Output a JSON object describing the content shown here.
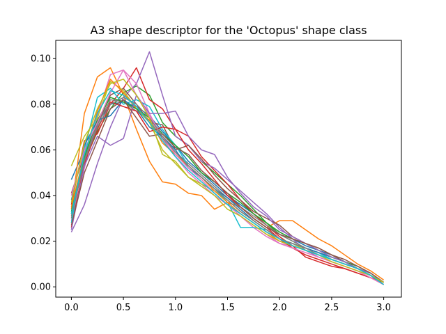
{
  "chart_data": {
    "type": "line",
    "title": "A3 shape descriptor for the 'Octopus' shape class",
    "xlabel": "",
    "ylabel": "",
    "xlim": [
      -0.15,
      3.17
    ],
    "ylim": [
      -0.0045,
      0.108
    ],
    "xticks": [
      "0.0",
      "0.5",
      "1.0",
      "1.5",
      "2.0",
      "2.5",
      "3.0"
    ],
    "yticks": [
      "0.00",
      "0.02",
      "0.04",
      "0.06",
      "0.08",
      "0.10"
    ],
    "grid": false,
    "legend": "none",
    "x": [
      0.0,
      0.125,
      0.25,
      0.375,
      0.5,
      0.625,
      0.75,
      0.875,
      1.0,
      1.125,
      1.25,
      1.375,
      1.5,
      1.625,
      1.75,
      1.875,
      2.0,
      2.125,
      2.25,
      2.375,
      2.5,
      2.625,
      2.75,
      2.875,
      3.0
    ],
    "series": [
      {
        "color": "#1f77b4",
        "values": [
          0.047,
          0.06,
          0.072,
          0.08,
          0.081,
          0.079,
          0.075,
          0.068,
          0.062,
          0.055,
          0.05,
          0.045,
          0.04,
          0.036,
          0.032,
          0.028,
          0.024,
          0.021,
          0.018,
          0.016,
          0.014,
          0.011,
          0.008,
          0.005,
          0.002
        ]
      },
      {
        "color": "#ff7f0e",
        "values": [
          0.034,
          0.076,
          0.092,
          0.096,
          0.084,
          0.069,
          0.055,
          0.046,
          0.045,
          0.041,
          0.04,
          0.034,
          0.037,
          0.035,
          0.03,
          0.026,
          0.029,
          0.029,
          0.025,
          0.021,
          0.018,
          0.014,
          0.01,
          0.007,
          0.003
        ]
      },
      {
        "color": "#2ca02c",
        "values": [
          0.032,
          0.055,
          0.068,
          0.078,
          0.085,
          0.088,
          0.084,
          0.072,
          0.066,
          0.062,
          0.055,
          0.05,
          0.045,
          0.04,
          0.034,
          0.028,
          0.023,
          0.02,
          0.017,
          0.015,
          0.013,
          0.011,
          0.009,
          0.006,
          0.002
        ]
      },
      {
        "color": "#d62728",
        "values": [
          0.036,
          0.064,
          0.067,
          0.08,
          0.087,
          0.096,
          0.082,
          0.078,
          0.069,
          0.066,
          0.057,
          0.051,
          0.045,
          0.038,
          0.032,
          0.027,
          0.022,
          0.018,
          0.013,
          0.011,
          0.009,
          0.008,
          0.006,
          0.004,
          0.002
        ]
      },
      {
        "color": "#9467bd",
        "values": [
          0.024,
          0.036,
          0.054,
          0.07,
          0.083,
          0.089,
          0.103,
          0.084,
          0.066,
          0.062,
          0.055,
          0.052,
          0.047,
          0.042,
          0.037,
          0.032,
          0.026,
          0.021,
          0.016,
          0.013,
          0.011,
          0.009,
          0.007,
          0.005,
          0.002
        ]
      },
      {
        "color": "#8c564b",
        "values": [
          0.041,
          0.058,
          0.071,
          0.084,
          0.087,
          0.08,
          0.072,
          0.071,
          0.06,
          0.062,
          0.056,
          0.049,
          0.043,
          0.038,
          0.033,
          0.03,
          0.027,
          0.022,
          0.019,
          0.017,
          0.014,
          0.011,
          0.008,
          0.005,
          0.002
        ]
      },
      {
        "color": "#e377c2",
        "values": [
          0.029,
          0.052,
          0.075,
          0.093,
          0.095,
          0.089,
          0.076,
          0.065,
          0.057,
          0.05,
          0.045,
          0.04,
          0.036,
          0.031,
          0.026,
          0.022,
          0.019,
          0.018,
          0.016,
          0.014,
          0.012,
          0.01,
          0.008,
          0.006,
          0.002
        ]
      },
      {
        "color": "#7f7f7f",
        "values": [
          0.03,
          0.056,
          0.071,
          0.082,
          0.081,
          0.077,
          0.073,
          0.065,
          0.059,
          0.054,
          0.049,
          0.044,
          0.039,
          0.035,
          0.031,
          0.027,
          0.023,
          0.02,
          0.017,
          0.015,
          0.012,
          0.01,
          0.008,
          0.005,
          0.002
        ]
      },
      {
        "color": "#bcbd22",
        "values": [
          0.053,
          0.066,
          0.074,
          0.09,
          0.086,
          0.078,
          0.072,
          0.06,
          0.054,
          0.048,
          0.045,
          0.042,
          0.038,
          0.033,
          0.029,
          0.025,
          0.021,
          0.019,
          0.016,
          0.014,
          0.012,
          0.01,
          0.008,
          0.005,
          0.002
        ]
      },
      {
        "color": "#17becf",
        "values": [
          0.028,
          0.06,
          0.083,
          0.087,
          0.08,
          0.082,
          0.079,
          0.069,
          0.062,
          0.053,
          0.048,
          0.043,
          0.037,
          0.026,
          0.026,
          0.025,
          0.021,
          0.019,
          0.017,
          0.015,
          0.012,
          0.01,
          0.008,
          0.006,
          0.002
        ]
      },
      {
        "color": "#1f77b4",
        "values": [
          0.038,
          0.062,
          0.073,
          0.075,
          0.082,
          0.078,
          0.07,
          0.066,
          0.06,
          0.052,
          0.048,
          0.043,
          0.039,
          0.034,
          0.029,
          0.025,
          0.021,
          0.019,
          0.017,
          0.015,
          0.013,
          0.011,
          0.008,
          0.005,
          0.001
        ]
      },
      {
        "color": "#ff7f0e",
        "values": [
          0.035,
          0.058,
          0.077,
          0.091,
          0.085,
          0.078,
          0.073,
          0.063,
          0.058,
          0.053,
          0.048,
          0.042,
          0.037,
          0.032,
          0.028,
          0.024,
          0.02,
          0.018,
          0.016,
          0.014,
          0.012,
          0.01,
          0.008,
          0.005,
          0.002
        ]
      },
      {
        "color": "#2ca02c",
        "values": [
          0.033,
          0.057,
          0.073,
          0.083,
          0.081,
          0.078,
          0.074,
          0.067,
          0.062,
          0.057,
          0.05,
          0.046,
          0.041,
          0.037,
          0.032,
          0.028,
          0.024,
          0.021,
          0.019,
          0.016,
          0.013,
          0.011,
          0.008,
          0.005,
          0.001
        ]
      },
      {
        "color": "#d62728",
        "values": [
          0.026,
          0.054,
          0.069,
          0.081,
          0.079,
          0.077,
          0.068,
          0.07,
          0.069,
          0.06,
          0.054,
          0.047,
          0.04,
          0.035,
          0.03,
          0.026,
          0.021,
          0.017,
          0.014,
          0.012,
          0.01,
          0.008,
          0.006,
          0.004,
          0.001
        ]
      },
      {
        "color": "#9467bd",
        "values": [
          0.025,
          0.053,
          0.066,
          0.062,
          0.065,
          0.084,
          0.076,
          0.076,
          0.077,
          0.066,
          0.06,
          0.058,
          0.048,
          0.041,
          0.035,
          0.031,
          0.025,
          0.022,
          0.019,
          0.016,
          0.013,
          0.011,
          0.008,
          0.006,
          0.002
        ]
      },
      {
        "color": "#8c564b",
        "values": [
          0.027,
          0.05,
          0.064,
          0.078,
          0.082,
          0.074,
          0.066,
          0.067,
          0.061,
          0.058,
          0.051,
          0.046,
          0.041,
          0.035,
          0.03,
          0.026,
          0.023,
          0.021,
          0.019,
          0.017,
          0.014,
          0.012,
          0.009,
          0.006,
          0.002
        ]
      },
      {
        "color": "#e377c2",
        "values": [
          0.04,
          0.06,
          0.072,
          0.085,
          0.095,
          0.084,
          0.075,
          0.066,
          0.058,
          0.052,
          0.047,
          0.041,
          0.036,
          0.031,
          0.027,
          0.023,
          0.019,
          0.017,
          0.015,
          0.013,
          0.011,
          0.009,
          0.007,
          0.004,
          0.001
        ]
      },
      {
        "color": "#7f7f7f",
        "values": [
          0.031,
          0.055,
          0.07,
          0.08,
          0.083,
          0.08,
          0.074,
          0.066,
          0.059,
          0.053,
          0.048,
          0.043,
          0.038,
          0.033,
          0.029,
          0.025,
          0.021,
          0.019,
          0.017,
          0.014,
          0.012,
          0.01,
          0.008,
          0.005,
          0.002
        ]
      },
      {
        "color": "#bcbd22",
        "values": [
          0.037,
          0.063,
          0.078,
          0.089,
          0.091,
          0.084,
          0.074,
          0.058,
          0.055,
          0.048,
          0.044,
          0.04,
          0.034,
          0.031,
          0.027,
          0.023,
          0.02,
          0.018,
          0.016,
          0.014,
          0.011,
          0.009,
          0.007,
          0.005,
          0.002
        ]
      },
      {
        "color": "#17becf",
        "values": [
          0.032,
          0.058,
          0.076,
          0.086,
          0.084,
          0.079,
          0.072,
          0.064,
          0.057,
          0.051,
          0.046,
          0.041,
          0.036,
          0.032,
          0.028,
          0.024,
          0.021,
          0.018,
          0.016,
          0.014,
          0.012,
          0.01,
          0.008,
          0.005,
          0.001
        ]
      }
    ]
  }
}
